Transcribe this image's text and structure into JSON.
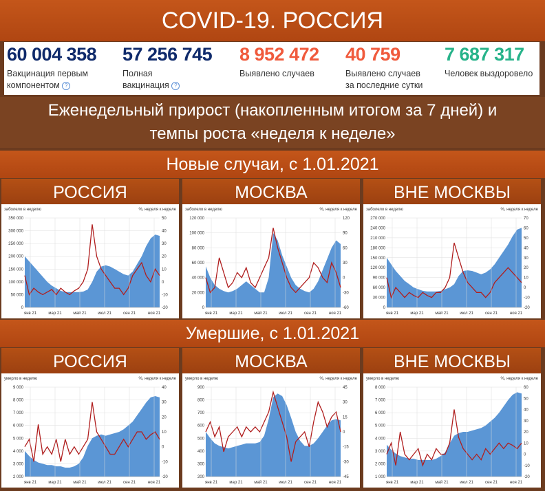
{
  "title": "COVID-19. РОССИЯ",
  "stats": [
    {
      "value": "60 004 358",
      "label": [
        "Вакцинация первым",
        "компонентом"
      ],
      "help": true,
      "color": "#0f2a6b"
    },
    {
      "value": "57 256 745",
      "label": [
        "Полная",
        "вакцинация"
      ],
      "help": true,
      "color": "#0f2a6b"
    },
    {
      "value": "8 952 472",
      "label": [
        "Выявлено случаев"
      ],
      "help": false,
      "color": "#f05a3c"
    },
    {
      "value": "40 759",
      "label": [
        "Выявлено случаев",
        "за последние сутки"
      ],
      "help": false,
      "color": "#f05a3c"
    },
    {
      "value": "7 687 317",
      "label": [
        "Человек выздоровело"
      ],
      "help": false,
      "color": "#27b38a"
    }
  ],
  "subtitle": "Еженедельный прирост (накопленным итогом за 7 дней) и темпы роста «неделя к неделе»",
  "section_cases": "Новые случаи, с 1.01.2021",
  "section_deaths": "Умершие, с 1.01.2021",
  "regions": [
    "РОССИЯ",
    "МОСКВА",
    "ВНЕ МОСКВЫ"
  ],
  "colors": {
    "area": "#5b96d5",
    "line": "#b01e1e",
    "band": "#b8501a",
    "bg": "#6b3b1f"
  },
  "chart_data": [
    {
      "type": "area",
      "group": "cases",
      "region": "РОССИЯ",
      "left_label": "заболело в неделю",
      "right_label": "%, неделя к неделе",
      "left_ticks": [
        "350 000",
        "300 000",
        "250 000",
        "200 000",
        "150 000",
        "100 000",
        "50 000",
        "0"
      ],
      "right_ticks": [
        "50",
        "40",
        "30",
        "20",
        "10",
        "0",
        "-10",
        "-20"
      ],
      "x_ticks": [
        "янв 21",
        "мар 21",
        "май 21",
        "июл 21",
        "сен 21",
        "ноя 21"
      ],
      "left_range": [
        0,
        350000
      ],
      "right_range": [
        -20,
        50
      ],
      "area": [
        200000,
        180000,
        160000,
        140000,
        120000,
        100000,
        85000,
        75000,
        65000,
        60000,
        60000,
        60000,
        60000,
        62000,
        70000,
        100000,
        140000,
        160000,
        165000,
        160000,
        150000,
        140000,
        130000,
        125000,
        140000,
        170000,
        200000,
        240000,
        270000,
        285000,
        280000
      ],
      "line": [
        5,
        -10,
        -5,
        -8,
        -10,
        -8,
        -6,
        -10,
        -5,
        -8,
        -10,
        -7,
        -5,
        0,
        10,
        45,
        20,
        10,
        5,
        0,
        -5,
        -5,
        -10,
        -5,
        5,
        10,
        15,
        5,
        0,
        10,
        5
      ]
    },
    {
      "type": "area",
      "group": "cases",
      "region": "МОСКВА",
      "left_label": "заболело в неделю",
      "right_label": "%, неделя к неделе",
      "left_ticks": [
        "120 000",
        "100 000",
        "80 000",
        "60 000",
        "40 000",
        "20 000",
        "0"
      ],
      "right_ticks": [
        "120",
        "90",
        "60",
        "30",
        "0",
        "-30",
        "-60"
      ],
      "x_ticks": [
        "янв 21",
        "мар 21",
        "май 21",
        "июл 21",
        "сен 21",
        "ноя 21"
      ],
      "left_range": [
        0,
        120000
      ],
      "right_range": [
        -60,
        120
      ],
      "area": [
        55000,
        40000,
        30000,
        25000,
        22000,
        20000,
        22000,
        25000,
        30000,
        35000,
        30000,
        25000,
        20000,
        20000,
        40000,
        100000,
        90000,
        70000,
        55000,
        40000,
        30000,
        25000,
        22000,
        20000,
        25000,
        35000,
        50000,
        65000,
        80000,
        90000,
        85000
      ],
      "line": [
        0,
        -30,
        -20,
        40,
        10,
        -20,
        -10,
        10,
        0,
        20,
        -10,
        -20,
        0,
        20,
        40,
        100,
        60,
        30,
        0,
        -20,
        -30,
        -20,
        -10,
        0,
        30,
        20,
        0,
        -10,
        30,
        10,
        -20
      ]
    },
    {
      "type": "area",
      "group": "cases",
      "region": "ВНЕ МОСКВЫ",
      "left_label": "заболело в неделю",
      "right_label": "%, неделя к неделе",
      "left_ticks": [
        "270 000",
        "240 000",
        "210 000",
        "180 000",
        "150 000",
        "120 000",
        "90 000",
        "60 000",
        "30 000",
        "0"
      ],
      "right_ticks": [
        "70",
        "60",
        "50",
        "40",
        "30",
        "20",
        "10",
        "0",
        "-10",
        "-20"
      ],
      "x_ticks": [
        "янв 21",
        "мар 21",
        "май 21",
        "июл 21",
        "сен 21",
        "ноя 21"
      ],
      "left_range": [
        0,
        270000
      ],
      "right_range": [
        -20,
        70
      ],
      "area": [
        150000,
        130000,
        110000,
        95000,
        80000,
        70000,
        60000,
        55000,
        50000,
        48000,
        48000,
        48000,
        50000,
        55000,
        60000,
        70000,
        95000,
        110000,
        112000,
        110000,
        105000,
        100000,
        105000,
        115000,
        130000,
        150000,
        170000,
        190000,
        215000,
        235000,
        240000
      ],
      "line": [
        10,
        -10,
        0,
        -5,
        -10,
        -5,
        -8,
        -10,
        -5,
        -8,
        -10,
        -5,
        -5,
        0,
        10,
        45,
        30,
        15,
        5,
        0,
        -5,
        -5,
        -10,
        -5,
        5,
        10,
        15,
        20,
        15,
        10,
        5
      ]
    },
    {
      "type": "area",
      "group": "deaths",
      "region": "РОССИЯ",
      "left_label": "умерло в неделю",
      "right_label": "%, неделя к неделе",
      "left_ticks": [
        "9 000",
        "8 000",
        "7 000",
        "6 000",
        "5 000",
        "4 000",
        "3 000",
        "2 000"
      ],
      "right_ticks": [
        "40",
        "30",
        "20",
        "10",
        "0",
        "-10",
        "-20"
      ],
      "x_ticks": [
        "янв 21",
        "мар 21",
        "май 21",
        "июл 21",
        "сен 21",
        "ноя 21"
      ],
      "left_range": [
        2000,
        9000
      ],
      "right_range": [
        -20,
        40
      ],
      "area": [
        4000,
        3600,
        3300,
        3100,
        3000,
        2900,
        2900,
        2800,
        2800,
        2700,
        2700,
        2800,
        3000,
        3500,
        4400,
        5000,
        5200,
        5300,
        5200,
        5300,
        5400,
        5500,
        5700,
        6000,
        6300,
        6800,
        7300,
        7800,
        8200,
        8300,
        8200
      ],
      "line": [
        0,
        5,
        -10,
        15,
        -5,
        0,
        -5,
        5,
        -10,
        5,
        -5,
        0,
        -5,
        0,
        5,
        30,
        10,
        5,
        0,
        -5,
        -5,
        0,
        5,
        0,
        5,
        10,
        10,
        5,
        8,
        10,
        5
      ]
    },
    {
      "type": "area",
      "group": "deaths",
      "region": "МОСКВА",
      "left_label": "умерло в неделю",
      "right_label": "%, неделя к неделе",
      "left_ticks": [
        "900",
        "800",
        "700",
        "600",
        "500",
        "400",
        "300",
        "200"
      ],
      "right_ticks": [
        "45",
        "30",
        "15",
        "0",
        "-15",
        "-30",
        "-45"
      ],
      "x_ticks": [
        "янв 21",
        "мар 21",
        "май 21",
        "июл 21",
        "сен 21",
        "ноя 21"
      ],
      "left_range": [
        200,
        900
      ],
      "right_range": [
        -45,
        45
      ],
      "area": [
        550,
        500,
        460,
        440,
        430,
        420,
        430,
        440,
        450,
        460,
        460,
        460,
        470,
        520,
        650,
        820,
        850,
        830,
        760,
        660,
        550,
        480,
        440,
        440,
        460,
        500,
        550,
        600,
        640,
        650,
        640
      ],
      "line": [
        0,
        10,
        -5,
        5,
        -20,
        -5,
        0,
        5,
        -5,
        5,
        0,
        5,
        0,
        10,
        20,
        40,
        25,
        10,
        -5,
        -30,
        -10,
        -5,
        0,
        -15,
        10,
        30,
        20,
        5,
        15,
        20,
        0
      ]
    },
    {
      "type": "area",
      "group": "deaths",
      "region": "ВНЕ МОСКВЫ",
      "left_label": "умерло в неделю",
      "right_label": "%, неделя к неделе",
      "left_ticks": [
        "8 000",
        "7 000",
        "6 000",
        "5 000",
        "4 000",
        "3 000",
        "2 000",
        "1 000"
      ],
      "right_ticks": [
        "60",
        "50",
        "40",
        "30",
        "20",
        "10",
        "0",
        "-10",
        "-20"
      ],
      "x_ticks": [
        "янв 21",
        "мар 21",
        "май 21",
        "июл 21",
        "сен 21",
        "ноя 21"
      ],
      "left_range": [
        1000,
        8000
      ],
      "right_range": [
        -20,
        60
      ],
      "area": [
        3500,
        3100,
        2800,
        2600,
        2500,
        2400,
        2400,
        2300,
        2300,
        2300,
        2300,
        2400,
        2600,
        2900,
        3600,
        4200,
        4400,
        4500,
        4500,
        4600,
        4700,
        4800,
        5000,
        5300,
        5600,
        6000,
        6500,
        7000,
        7400,
        7600,
        7500
      ],
      "line": [
        0,
        10,
        -10,
        20,
        0,
        -5,
        0,
        5,
        -10,
        0,
        -5,
        5,
        0,
        0,
        10,
        40,
        15,
        5,
        0,
        -5,
        0,
        -5,
        5,
        0,
        5,
        10,
        5,
        10,
        8,
        5,
        10
      ]
    }
  ]
}
